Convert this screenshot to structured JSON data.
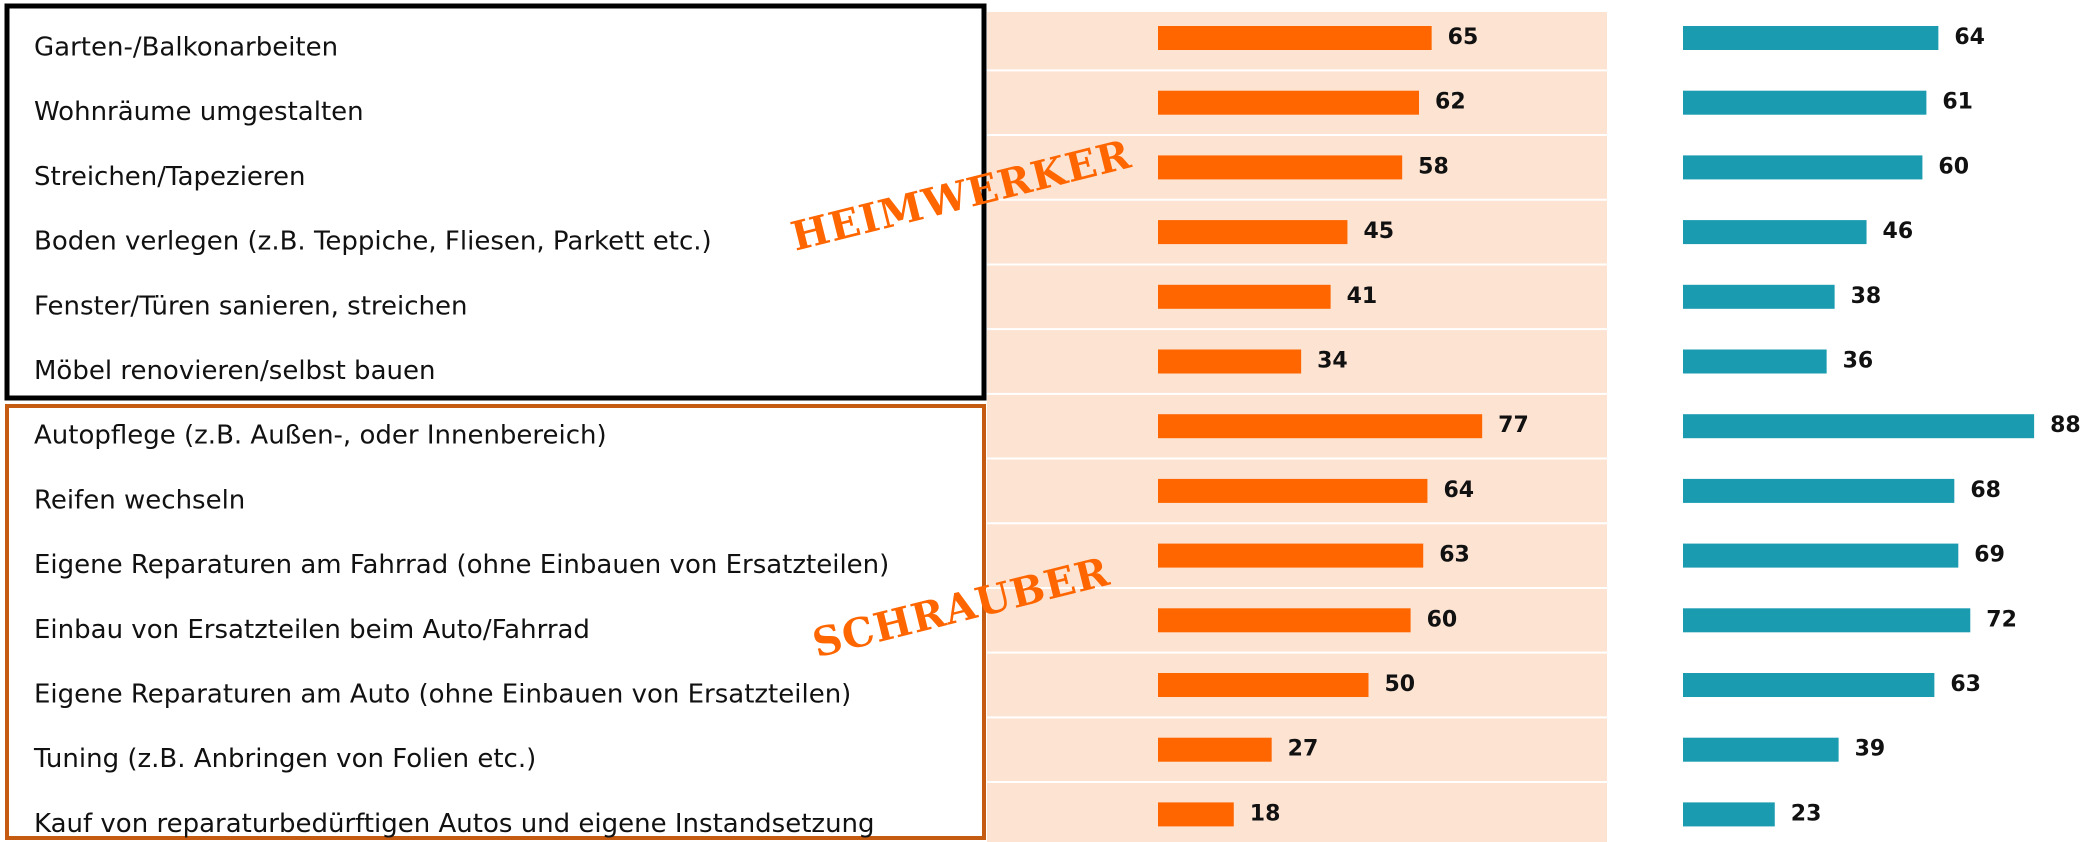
{
  "chart_data": {
    "type": "bar",
    "categories": [
      "Garten-/Balkonarbeiten",
      "Wohnräume umgestalten",
      "Streichen/Tapezieren",
      "Boden verlegen (z.B. Teppiche, Fliesen, Parkett etc.)",
      "Fenster/Türen sanieren, streichen",
      "Möbel renovieren/selbst bauen",
      "Autopflege (z.B. Außen-, oder Innenbereich)",
      "Reifen wechseln",
      "Eigene Reparaturen am Fahrrad (ohne Einbauen von Ersatzteilen)",
      "Einbau von Ersatzteilen beim Auto/Fahrrad",
      "Eigene Reparaturen am Auto (ohne Einbauen von Ersatzteilen)",
      "Tuning (z.B. Anbringen von Folien etc.)",
      "Kauf von reparaturbedürftigen Autos und eigene Instandsetzung"
    ],
    "series": [
      {
        "color": "#ff6600",
        "values": [
          65,
          62,
          58,
          45,
          41,
          34,
          77,
          64,
          63,
          60,
          50,
          27,
          18
        ]
      },
      {
        "color": "#1a9bb0",
        "values": [
          64,
          61,
          60,
          46,
          38,
          36,
          88,
          68,
          69,
          72,
          63,
          39,
          23
        ]
      }
    ],
    "annotations": [
      "HEIMWERKER",
      "SCHRAUBER"
    ]
  }
}
